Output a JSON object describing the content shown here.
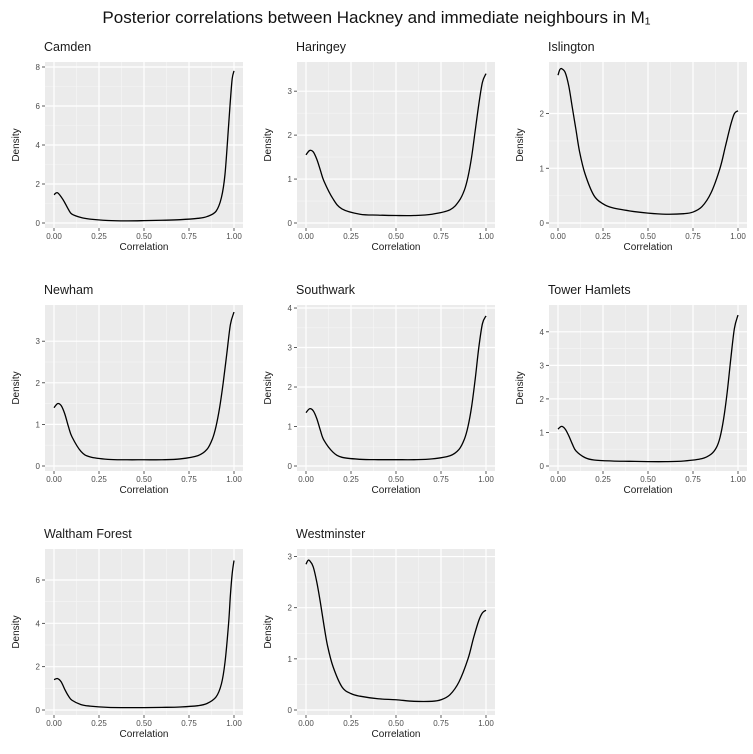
{
  "chart_data": {
    "type": "line",
    "title": "Posterior correlations between Hackney and immediate neighbours in M₁",
    "xlabel": "Correlation",
    "ylabel": "Density",
    "x_ticks": [
      "0.00",
      "0.25",
      "0.50",
      "0.75",
      "1.00"
    ],
    "xlim": [
      0,
      1
    ],
    "grid": true,
    "panels": [
      {
        "name": "Camden",
        "ylim": [
          0,
          8.0
        ],
        "y_ticks": [
          0,
          2,
          4,
          6,
          8
        ],
        "x": [
          0.0,
          0.02,
          0.05,
          0.08,
          0.1,
          0.15,
          0.2,
          0.3,
          0.4,
          0.5,
          0.6,
          0.7,
          0.8,
          0.85,
          0.9,
          0.93,
          0.95,
          0.97,
          0.98,
          0.99,
          1.0
        ],
        "y": [
          1.45,
          1.55,
          1.2,
          0.7,
          0.45,
          0.28,
          0.2,
          0.13,
          0.11,
          0.12,
          0.14,
          0.17,
          0.24,
          0.33,
          0.6,
          1.3,
          2.5,
          5.0,
          6.3,
          7.4,
          7.8
        ]
      },
      {
        "name": "Haringey",
        "ylim": [
          0,
          3.55
        ],
        "y_ticks": [
          0,
          1,
          2,
          3
        ],
        "x": [
          0.0,
          0.02,
          0.04,
          0.06,
          0.08,
          0.1,
          0.15,
          0.2,
          0.3,
          0.4,
          0.5,
          0.6,
          0.7,
          0.8,
          0.85,
          0.88,
          0.9,
          0.92,
          0.94,
          0.96,
          0.98,
          1.0
        ],
        "y": [
          1.55,
          1.65,
          1.62,
          1.45,
          1.2,
          0.95,
          0.55,
          0.32,
          0.2,
          0.18,
          0.17,
          0.17,
          0.2,
          0.3,
          0.5,
          0.75,
          1.05,
          1.5,
          2.1,
          2.7,
          3.2,
          3.4
        ]
      },
      {
        "name": "Islington",
        "ylim": [
          0,
          2.85
        ],
        "y_ticks": [
          0,
          1,
          2
        ],
        "x": [
          0.0,
          0.01,
          0.02,
          0.04,
          0.06,
          0.08,
          0.1,
          0.12,
          0.15,
          0.2,
          0.25,
          0.3,
          0.4,
          0.5,
          0.6,
          0.7,
          0.75,
          0.8,
          0.85,
          0.9,
          0.93,
          0.96,
          0.98,
          1.0
        ],
        "y": [
          2.7,
          2.8,
          2.82,
          2.75,
          2.5,
          2.1,
          1.7,
          1.3,
          0.9,
          0.5,
          0.35,
          0.28,
          0.22,
          0.18,
          0.16,
          0.17,
          0.2,
          0.3,
          0.55,
          1.0,
          1.4,
          1.8,
          2.0,
          2.05
        ]
      },
      {
        "name": "Newham",
        "ylim": [
          0,
          3.75
        ],
        "y_ticks": [
          0,
          1,
          2,
          3
        ],
        "x": [
          0.0,
          0.02,
          0.04,
          0.06,
          0.08,
          0.1,
          0.15,
          0.2,
          0.3,
          0.4,
          0.5,
          0.6,
          0.7,
          0.8,
          0.85,
          0.88,
          0.9,
          0.92,
          0.94,
          0.96,
          0.98,
          1.0
        ],
        "y": [
          1.4,
          1.5,
          1.45,
          1.25,
          0.95,
          0.7,
          0.35,
          0.22,
          0.16,
          0.15,
          0.15,
          0.15,
          0.17,
          0.25,
          0.4,
          0.65,
          0.95,
          1.4,
          2.0,
          2.7,
          3.4,
          3.7
        ]
      },
      {
        "name": "Southwark",
        "ylim": [
          0,
          3.95
        ],
        "y_ticks": [
          0,
          1,
          2,
          3,
          4
        ],
        "x": [
          0.0,
          0.02,
          0.04,
          0.06,
          0.08,
          0.1,
          0.15,
          0.2,
          0.3,
          0.4,
          0.5,
          0.6,
          0.7,
          0.8,
          0.85,
          0.88,
          0.9,
          0.92,
          0.94,
          0.96,
          0.98,
          1.0
        ],
        "y": [
          1.35,
          1.45,
          1.4,
          1.2,
          0.9,
          0.65,
          0.35,
          0.22,
          0.17,
          0.16,
          0.16,
          0.16,
          0.18,
          0.26,
          0.42,
          0.68,
          1.0,
          1.5,
          2.2,
          3.0,
          3.6,
          3.8
        ]
      },
      {
        "name": "Tower Hamlets",
        "ylim": [
          0,
          4.65
        ],
        "y_ticks": [
          0,
          1,
          2,
          3,
          4
        ],
        "x": [
          0.0,
          0.02,
          0.04,
          0.06,
          0.08,
          0.1,
          0.15,
          0.2,
          0.3,
          0.4,
          0.5,
          0.6,
          0.7,
          0.8,
          0.85,
          0.88,
          0.9,
          0.92,
          0.94,
          0.96,
          0.98,
          1.0
        ],
        "y": [
          1.1,
          1.18,
          1.1,
          0.9,
          0.65,
          0.45,
          0.25,
          0.18,
          0.15,
          0.14,
          0.13,
          0.13,
          0.15,
          0.22,
          0.35,
          0.55,
          0.85,
          1.4,
          2.2,
          3.2,
          4.1,
          4.5
        ]
      },
      {
        "name": "Waltham Forest",
        "ylim": [
          0,
          7.2
        ],
        "y_ticks": [
          0,
          2,
          4,
          6
        ],
        "x": [
          0.0,
          0.02,
          0.04,
          0.06,
          0.08,
          0.1,
          0.15,
          0.2,
          0.3,
          0.4,
          0.5,
          0.6,
          0.7,
          0.8,
          0.85,
          0.9,
          0.93,
          0.95,
          0.97,
          0.98,
          0.99,
          1.0
        ],
        "y": [
          1.4,
          1.45,
          1.3,
          0.95,
          0.65,
          0.45,
          0.25,
          0.18,
          0.12,
          0.11,
          0.11,
          0.12,
          0.14,
          0.2,
          0.3,
          0.6,
          1.2,
          2.2,
          4.0,
          5.3,
          6.3,
          6.9
        ]
      },
      {
        "name": "Westminster",
        "ylim": [
          0,
          3.05
        ],
        "y_ticks": [
          0,
          1,
          2,
          3
        ],
        "x": [
          0.0,
          0.01,
          0.02,
          0.04,
          0.06,
          0.08,
          0.1,
          0.12,
          0.15,
          0.2,
          0.25,
          0.3,
          0.4,
          0.5,
          0.6,
          0.7,
          0.75,
          0.8,
          0.85,
          0.9,
          0.93,
          0.96,
          0.98,
          1.0
        ],
        "y": [
          2.85,
          2.92,
          2.92,
          2.8,
          2.5,
          2.1,
          1.65,
          1.25,
          0.85,
          0.45,
          0.32,
          0.27,
          0.22,
          0.2,
          0.17,
          0.17,
          0.2,
          0.3,
          0.55,
          1.0,
          1.4,
          1.75,
          1.9,
          1.95
        ]
      }
    ]
  }
}
